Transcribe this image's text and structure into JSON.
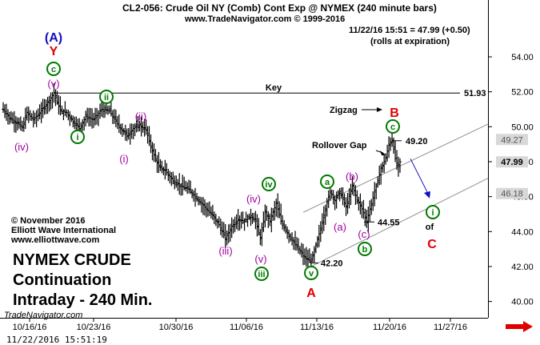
{
  "header": {
    "title": "CL2-056:  Crude Oil NY (Comb) Cont Exp @ NYMEX  (240 minute bars)",
    "copyright": "www.TradeNavigator.com © 1999-2016",
    "last_quote": "11/22/16 15:51 = 47.99 (+0.50)",
    "rolls_note": "(rolls at expiration)"
  },
  "branding": {
    "ewi_lines": [
      "© November 2016",
      "Elliott Wave International",
      "www.elliottwave.com"
    ],
    "title_lines": [
      "NYMEX CRUDE",
      "Continuation",
      "Intraday - 240 Min."
    ],
    "trade_navigator": "TradeNavigator.com",
    "timestamp": "11/22/2016 15:51:19"
  },
  "colors": {
    "bars": "#000000",
    "wave_green": "#007a00",
    "wave_purple": "#a000a0",
    "wave_red": "#e00000",
    "wave_blue": "#1010c0",
    "channel": "#909090",
    "nav_arrow": "#e00000"
  },
  "chart_data": {
    "type": "ohlc",
    "bar_interval": "240 minute",
    "ylim": [
      39.3,
      55.6
    ],
    "y_ticks": [
      "54.00",
      "52.00",
      "50.00",
      "48.00",
      "46.00",
      "44.00",
      "42.00",
      "40.00"
    ],
    "x_ticks": [
      "10/16/16",
      "10/23/16",
      "10/30/16",
      "11/06/16",
      "11/13/16",
      "11/20/16",
      "11/27/16"
    ],
    "price_tags": [
      "49.27",
      "47.99",
      "46.18"
    ],
    "key_level": {
      "value": 51.93,
      "label": "Key",
      "value_label": "51.93"
    },
    "price_labels": [
      {
        "text": "49.20",
        "value": 49.2
      },
      {
        "text": "44.55",
        "value": 44.55
      },
      {
        "text": "42.20",
        "value": 42.2
      }
    ],
    "text_annotations": [
      "Zigzag",
      "Rollover Gap",
      "of"
    ],
    "wave_labels": [
      {
        "text": "(A)",
        "color": "blue",
        "circle": false
      },
      {
        "text": "Y",
        "color": "red",
        "circle": false
      },
      {
        "text": "c",
        "color": "green",
        "circle": true
      },
      {
        "text": "(v)",
        "color": "purple",
        "circle": false
      },
      {
        "text": "ii",
        "color": "green",
        "circle": true
      },
      {
        "text": "(iv)",
        "color": "purple",
        "circle": false
      },
      {
        "text": "i",
        "color": "green",
        "circle": true
      },
      {
        "text": "(ii)",
        "color": "purple",
        "circle": false
      },
      {
        "text": "(i)",
        "color": "purple",
        "circle": false
      },
      {
        "text": "(iii)",
        "color": "purple",
        "circle": false
      },
      {
        "text": "iv",
        "color": "green",
        "circle": true
      },
      {
        "text": "(iv)",
        "color": "purple",
        "circle": false
      },
      {
        "text": "(v)",
        "color": "purple",
        "circle": false
      },
      {
        "text": "iii",
        "color": "green",
        "circle": true
      },
      {
        "text": "v",
        "color": "green",
        "circle": true
      },
      {
        "text": "A",
        "color": "red",
        "circle": false
      },
      {
        "text": "a",
        "color": "green",
        "circle": true
      },
      {
        "text": "(b)",
        "color": "purple",
        "circle": false
      },
      {
        "text": "(a)",
        "color": "purple",
        "circle": false
      },
      {
        "text": "(c)",
        "color": "purple",
        "circle": false
      },
      {
        "text": "b",
        "color": "green",
        "circle": true
      },
      {
        "text": "B",
        "color": "red",
        "circle": false
      },
      {
        "text": "c",
        "color": "green",
        "circle": true
      },
      {
        "text": "i",
        "color": "green",
        "circle": true
      },
      {
        "text": "C",
        "color": "red",
        "circle": false
      }
    ],
    "price_path": [
      [
        0,
        51.0
      ],
      [
        8,
        50.5
      ],
      [
        18,
        50.2
      ],
      [
        24,
        49.95
      ],
      [
        30,
        50.8
      ],
      [
        38,
        50.4
      ],
      [
        46,
        50.8
      ],
      [
        58,
        51.5
      ],
      [
        64,
        51.95
      ],
      [
        72,
        50.9
      ],
      [
        80,
        50.8
      ],
      [
        88,
        50.3
      ],
      [
        96,
        49.9
      ],
      [
        104,
        50.6
      ],
      [
        114,
        50.4
      ],
      [
        124,
        51.0
      ],
      [
        134,
        50.9
      ],
      [
        142,
        50.3
      ],
      [
        150,
        49.8
      ],
      [
        156,
        49.5
      ],
      [
        164,
        49.9
      ],
      [
        172,
        50.1
      ],
      [
        180,
        49.8
      ],
      [
        188,
        48.6
      ],
      [
        196,
        47.7
      ],
      [
        204,
        47.5
      ],
      [
        214,
        46.9
      ],
      [
        224,
        46.6
      ],
      [
        234,
        46.4
      ],
      [
        244,
        45.9
      ],
      [
        254,
        45.4
      ],
      [
        264,
        44.9
      ],
      [
        272,
        44.4
      ],
      [
        280,
        43.6
      ],
      [
        288,
        44.3
      ],
      [
        296,
        44.7
      ],
      [
        304,
        44.6
      ],
      [
        312,
        44.9
      ],
      [
        318,
        44.6
      ],
      [
        324,
        43.6
      ],
      [
        330,
        45.1
      ],
      [
        336,
        44.6
      ],
      [
        344,
        45.6
      ],
      [
        350,
        44.6
      ],
      [
        356,
        44.1
      ],
      [
        364,
        43.5
      ],
      [
        372,
        43.0
      ],
      [
        380,
        42.5
      ],
      [
        388,
        42.3
      ],
      [
        394,
        43.2
      ],
      [
        400,
        44.2
      ],
      [
        406,
        45.3
      ],
      [
        412,
        46.3
      ],
      [
        418,
        45.8
      ],
      [
        424,
        46.3
      ],
      [
        432,
        45.4
      ],
      [
        440,
        46.6
      ],
      [
        446,
        45.8
      ],
      [
        452,
        45.3
      ],
      [
        458,
        44.6
      ],
      [
        464,
        45.6
      ],
      [
        470,
        46.6
      ],
      [
        476,
        47.6
      ],
      [
        482,
        48.2
      ],
      [
        486,
        49.0
      ],
      [
        490,
        49.25
      ],
      [
        494,
        48.2
      ],
      [
        497,
        47.6
      ],
      [
        500,
        47.99
      ]
    ],
    "rollover_gap_index": 483,
    "projection": {
      "from_value": 47.99,
      "to_value": 45.9
    }
  }
}
